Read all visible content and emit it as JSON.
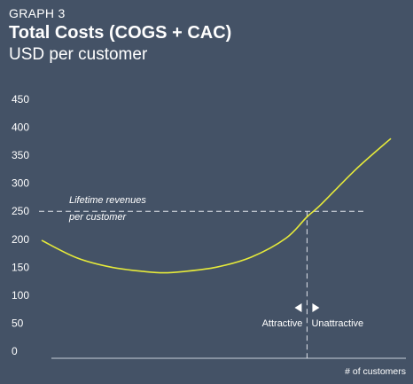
{
  "header": {
    "overline": "GRAPH 3",
    "title": "Total Costs (COGS + CAC)",
    "subtitle": "USD per customer"
  },
  "chart_data": {
    "type": "line",
    "title": "Total Costs (COGS + CAC)",
    "subtitle": "USD per customer",
    "xlabel": "# of customers",
    "ylabel": "",
    "ylim": [
      0,
      450
    ],
    "yticks": [
      0,
      50,
      100,
      150,
      200,
      250,
      300,
      350,
      400,
      450
    ],
    "x": [
      0,
      0.1,
      0.2,
      0.3,
      0.35,
      0.4,
      0.5,
      0.6,
      0.7,
      0.76,
      0.8,
      0.9,
      1.0
    ],
    "series": [
      {
        "values": [
          198,
          167,
          150,
          142,
          140,
          142,
          150,
          168,
          202,
          240,
          262,
          325,
          380
        ]
      }
    ],
    "reference_line": {
      "y": 250,
      "label_line1": "Lifetime revenues",
      "label_line2": "per customer"
    },
    "breakeven_x": 0.76,
    "regions": {
      "left": "Attractive",
      "right": "Unattractive"
    },
    "grid": false,
    "colors": {
      "background": "#445266",
      "curve": "#e6ea3a",
      "axis": "#c9d0da"
    }
  }
}
